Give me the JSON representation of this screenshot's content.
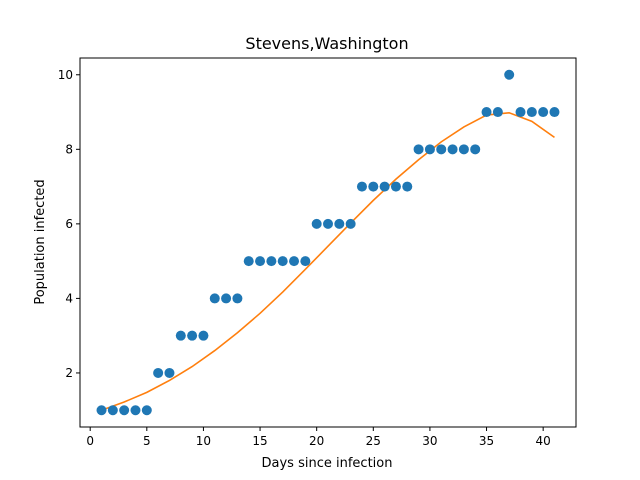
{
  "chart_data": {
    "type": "scatter",
    "title": "Stevens,Washington",
    "xlabel": "Days since infection",
    "ylabel": "Population infected",
    "xlim": [
      -0.9,
      42.9
    ],
    "ylim": [
      0.55,
      10.45
    ],
    "x_ticks": [
      0,
      5,
      10,
      15,
      20,
      25,
      30,
      35,
      40
    ],
    "y_ticks": [
      2,
      4,
      6,
      8,
      10
    ],
    "grid": false,
    "legend": "none",
    "series": [
      {
        "kind": "scatter",
        "color": "#1f77b4",
        "x": [
          1,
          2,
          3,
          4,
          5,
          6,
          7,
          8,
          9,
          10,
          11,
          12,
          13,
          14,
          15,
          16,
          17,
          18,
          19,
          20,
          21,
          22,
          23,
          24,
          25,
          26,
          27,
          28,
          29,
          30,
          31,
          32,
          33,
          34,
          35,
          36,
          37,
          38,
          39,
          40,
          41
        ],
        "y": [
          1,
          1,
          1,
          1,
          1,
          2,
          2,
          3,
          3,
          3,
          4,
          4,
          4,
          5,
          5,
          5,
          5,
          5,
          5,
          6,
          6,
          6,
          6,
          7,
          7,
          7,
          7,
          7,
          8,
          8,
          8,
          8,
          8,
          8,
          9,
          9,
          10,
          9,
          9,
          9,
          9
        ]
      },
      {
        "kind": "line",
        "color": "#ff7f0e",
        "x": [
          1,
          3,
          5,
          7,
          9,
          11,
          13,
          15,
          17,
          19,
          21,
          23,
          25,
          27,
          29,
          31,
          33,
          35,
          37,
          39,
          41
        ],
        "y": [
          1.0,
          1.22,
          1.48,
          1.8,
          2.17,
          2.6,
          3.08,
          3.6,
          4.17,
          4.78,
          5.4,
          6.02,
          6.63,
          7.2,
          7.72,
          8.2,
          8.6,
          8.92,
          8.98,
          8.75,
          8.32
        ]
      }
    ]
  }
}
